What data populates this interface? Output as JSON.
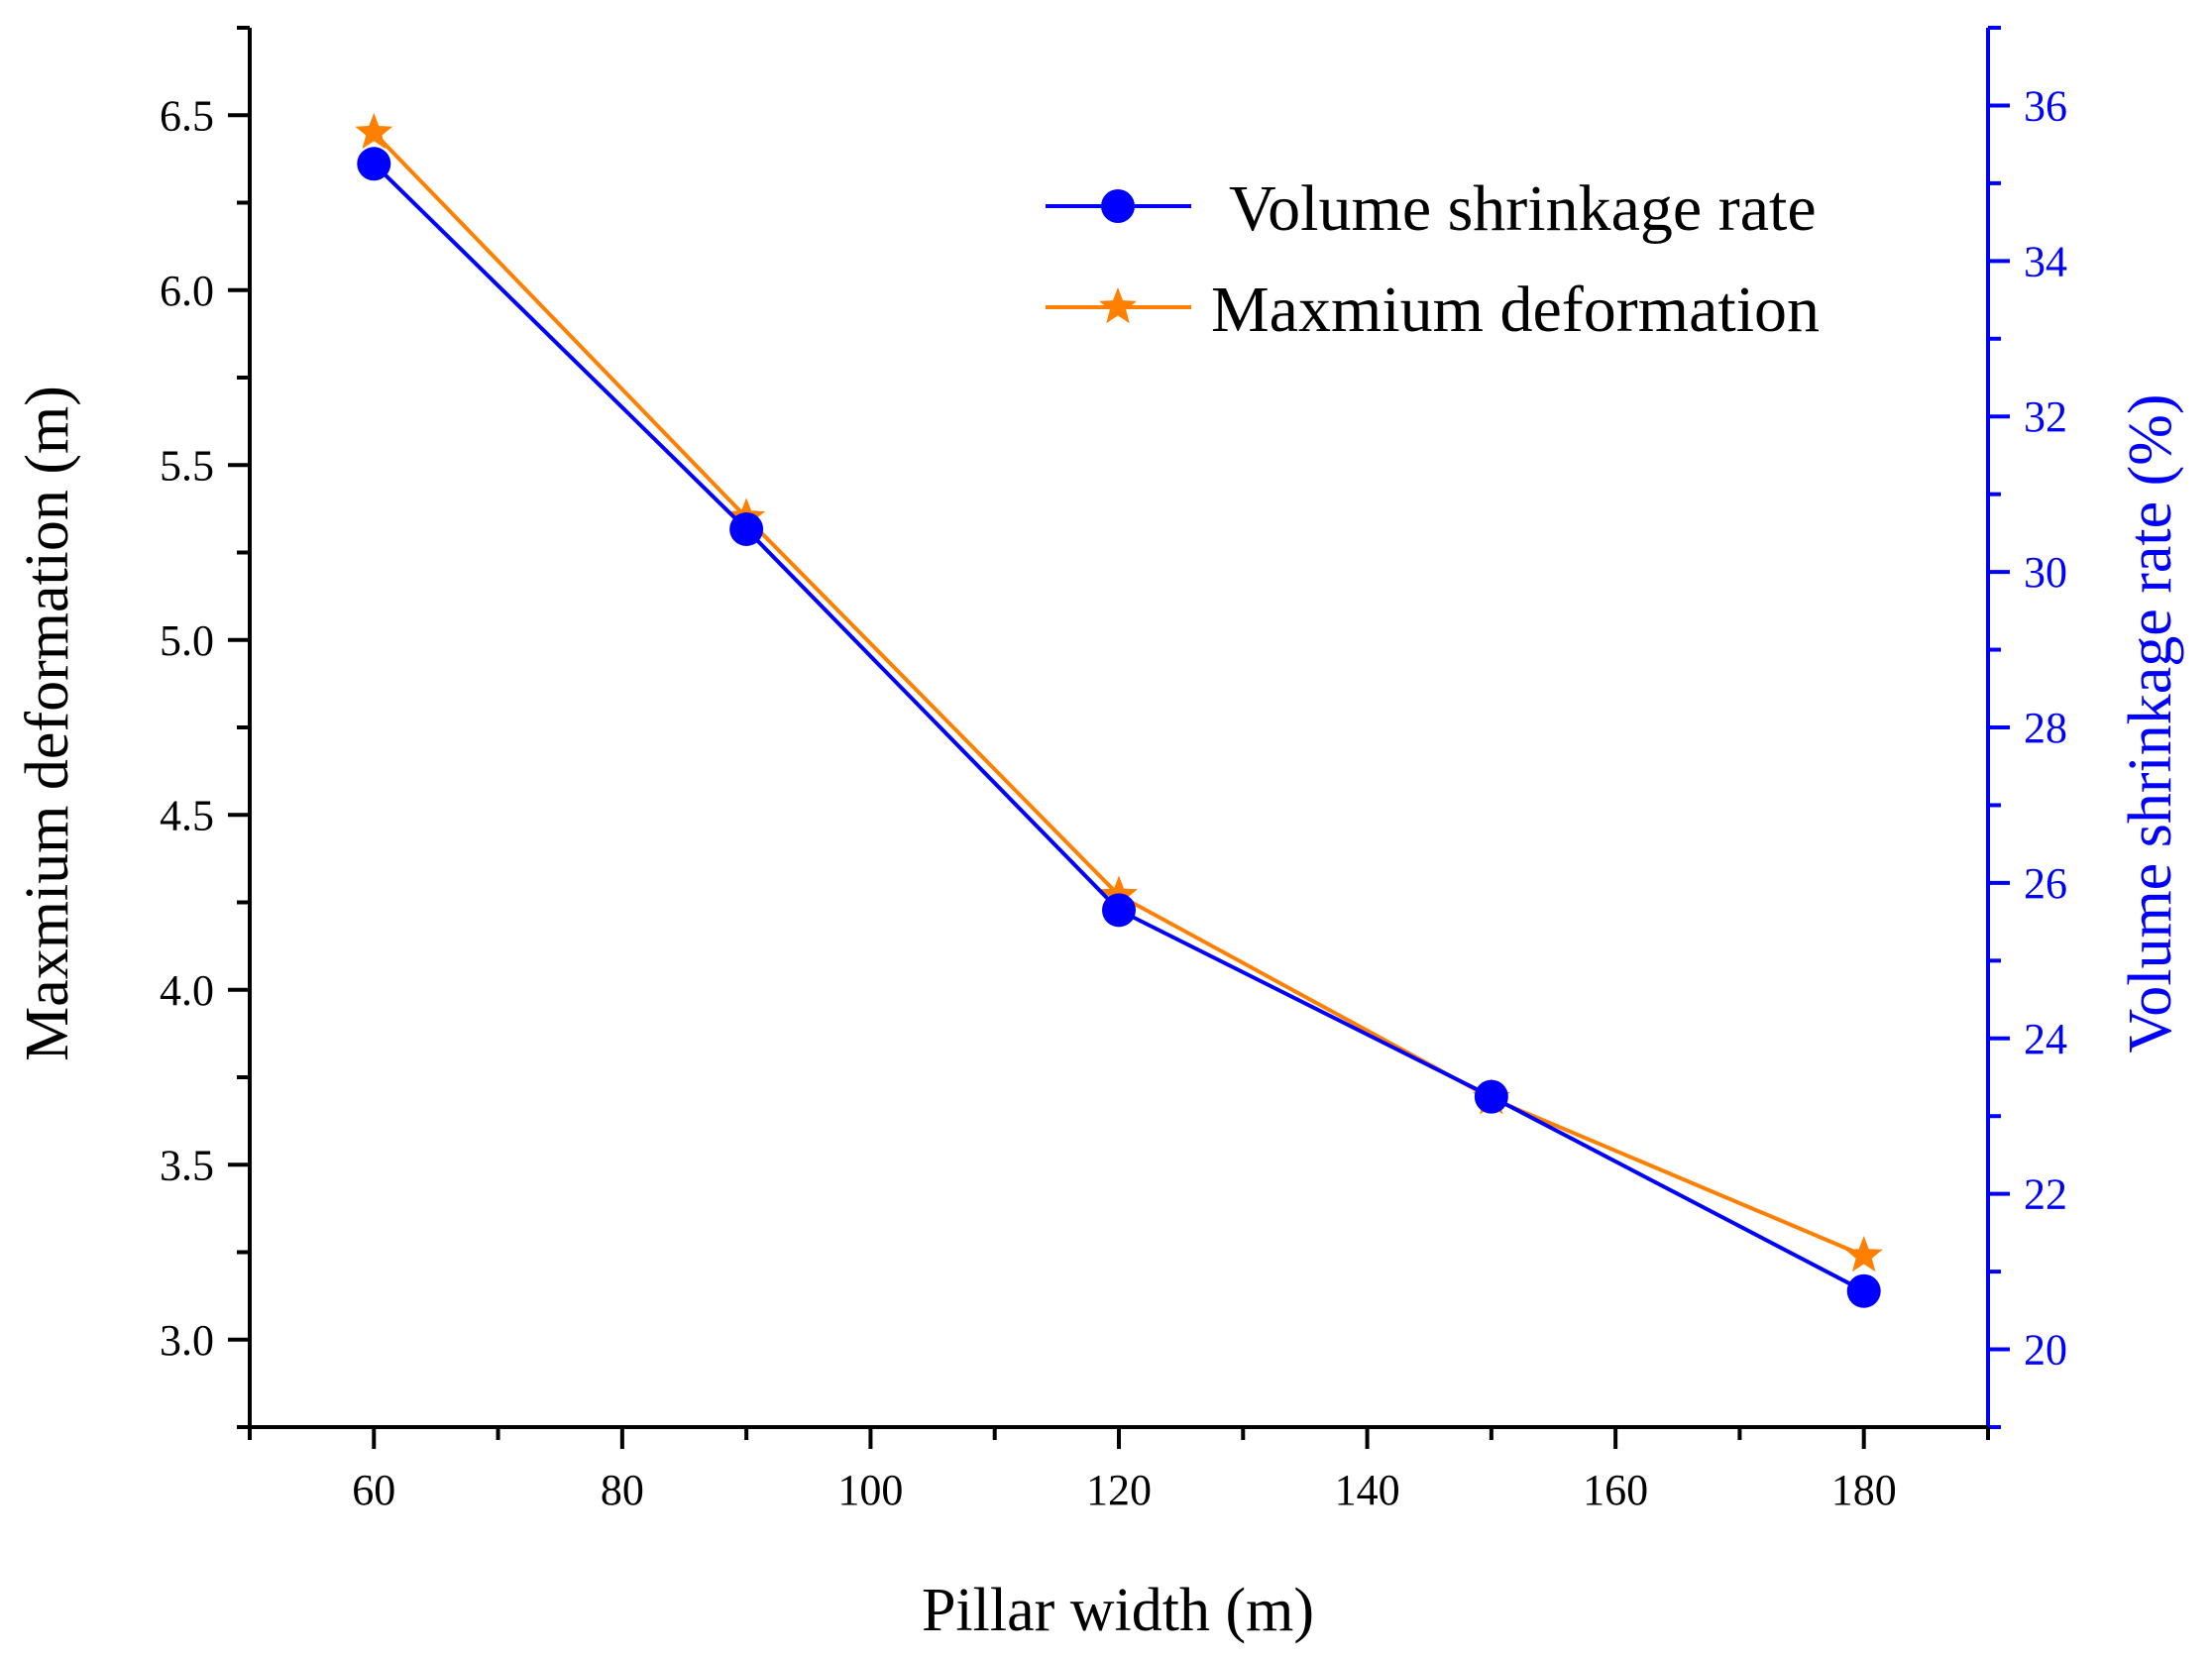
{
  "chart_data": {
    "type": "line",
    "title": "",
    "xlabel": "Pillar width (m)",
    "ylabel_left": "Maxmium deformation (m)",
    "ylabel_right": "Volume shrinkage rate (%)",
    "xlim": [
      50,
      190
    ],
    "ylim_left": [
      2.75,
      6.75
    ],
    "ylim_right": [
      19,
      37
    ],
    "x_ticks": [
      60,
      80,
      100,
      120,
      140,
      160,
      180
    ],
    "y_left_ticks": [
      3.0,
      3.5,
      4.0,
      4.5,
      5.0,
      5.5,
      6.0,
      6.5
    ],
    "y_right_ticks": [
      20,
      22,
      24,
      26,
      28,
      30,
      32,
      34,
      36
    ],
    "x_tick_labels": [
      "60",
      "80",
      "100",
      "120",
      "140",
      "160",
      "180"
    ],
    "y_left_tick_labels": [
      "3.0",
      "3.5",
      "4.0",
      "4.5",
      "5.0",
      "5.5",
      "6.0",
      "6.5"
    ],
    "y_right_tick_labels": [
      "20",
      "22",
      "24",
      "26",
      "28",
      "30",
      "32",
      "34",
      "36"
    ],
    "grid": false,
    "legend_position": "top-right",
    "series": [
      {
        "name": "Volume shrinkage rate",
        "axis": "right",
        "marker": "circle",
        "color": "#0000ff",
        "x": [
          60,
          90,
          120,
          150,
          180
        ],
        "values": [
          35.25,
          30.55,
          25.65,
          23.25,
          20.75
        ]
      },
      {
        "name": "Maxmium deformation",
        "axis": "left",
        "marker": "star",
        "color": "#ff8000",
        "x": [
          60,
          90,
          120,
          150,
          180
        ],
        "values": [
          6.45,
          5.35,
          4.27,
          3.69,
          3.24
        ]
      }
    ]
  }
}
